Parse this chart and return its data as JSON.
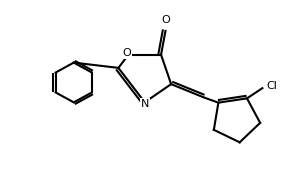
{
  "background_color": "#ffffff",
  "line_color": "#000000",
  "line_width": 1.5,
  "fig_width": 3.08,
  "fig_height": 1.9,
  "dpi": 100,
  "xlim": [
    0,
    10
  ],
  "ylim": [
    0,
    6.5
  ]
}
